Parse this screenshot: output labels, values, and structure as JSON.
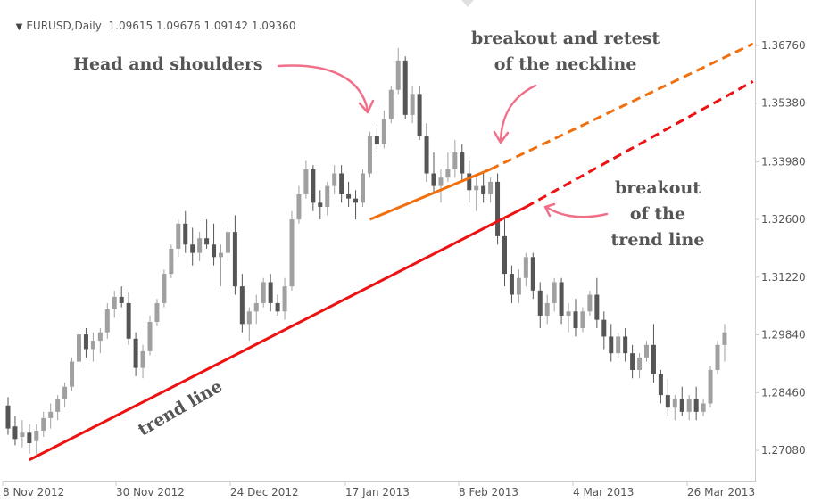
{
  "header": {
    "symbol": "EURUSD,Daily",
    "ohlc": "1.09615 1.09676 1.09142 1.09360",
    "triangle_icon": "down-triangle-icon"
  },
  "annotations": {
    "head_shoulders": "Head and shoulders",
    "breakout_retest": [
      "breakout and retest",
      "of the neckline"
    ],
    "breakout_trend": [
      "breakout",
      "of the",
      "trend line"
    ],
    "trend_line": "trend line"
  },
  "chart_data": {
    "type": "candlestick",
    "symbol": "EURUSD",
    "timeframe": "Daily",
    "y_ticks": [
      "1.36760",
      "1.35380",
      "1.33980",
      "1.32600",
      "1.31220",
      "1.29840",
      "1.28460",
      "1.27080"
    ],
    "x_ticks": [
      "8 Nov 2012",
      "30 Nov 2012",
      "24 Dec 2012",
      "17 Jan 2013",
      "8 Feb 2013",
      "4 Mar 2013",
      "26 Mar 2013"
    ],
    "ylim": [
      1.2658,
      1.3741
    ],
    "grid": false,
    "colors": {
      "bull": "#a0a0a0",
      "bear": "#555555",
      "trend_line": "#ee1111",
      "neckline": "#f07010",
      "arrow": "#f0708a",
      "text": "#555555",
      "axis": "#cccccc"
    },
    "candles": [
      [
        1.2815,
        1.2835,
        1.2745,
        1.276
      ],
      [
        1.2765,
        1.279,
        1.272,
        1.2735
      ],
      [
        1.274,
        1.278,
        1.2715,
        1.275
      ],
      [
        1.275,
        1.277,
        1.27,
        1.2725
      ],
      [
        1.273,
        1.277,
        1.269,
        1.2755
      ],
      [
        1.2755,
        1.28,
        1.274,
        1.2785
      ],
      [
        1.2785,
        1.282,
        1.276,
        1.28
      ],
      [
        1.28,
        1.284,
        1.278,
        1.283
      ],
      [
        1.283,
        1.287,
        1.281,
        1.286
      ],
      [
        1.286,
        1.293,
        1.285,
        1.292
      ],
      [
        1.292,
        1.299,
        1.291,
        1.2985
      ],
      [
        1.2985,
        1.3,
        1.293,
        1.295
      ],
      [
        1.295,
        1.299,
        1.292,
        1.297
      ],
      [
        1.297,
        1.3,
        1.294,
        1.299
      ],
      [
        1.299,
        1.306,
        1.2975,
        1.3045
      ],
      [
        1.3045,
        1.309,
        1.3025,
        1.3075
      ],
      [
        1.3075,
        1.31,
        1.305,
        1.306
      ],
      [
        1.306,
        1.3085,
        1.296,
        1.2975
      ],
      [
        1.2975,
        1.299,
        1.2885,
        1.2905
      ],
      [
        1.2905,
        1.296,
        1.288,
        1.2945
      ],
      [
        1.2945,
        1.303,
        1.2935,
        1.3015
      ],
      [
        1.3015,
        1.307,
        1.3005,
        1.306
      ],
      [
        1.306,
        1.314,
        1.305,
        1.313
      ],
      [
        1.313,
        1.32,
        1.312,
        1.319
      ],
      [
        1.319,
        1.326,
        1.317,
        1.325
      ],
      [
        1.325,
        1.328,
        1.318,
        1.32
      ],
      [
        1.32,
        1.324,
        1.315,
        1.318
      ],
      [
        1.318,
        1.323,
        1.316,
        1.3215
      ],
      [
        1.3215,
        1.326,
        1.319,
        1.32
      ],
      [
        1.32,
        1.325,
        1.315,
        1.317
      ],
      [
        1.317,
        1.32,
        1.31,
        1.318
      ],
      [
        1.318,
        1.324,
        1.316,
        1.323
      ],
      [
        1.323,
        1.327,
        1.308,
        1.31
      ],
      [
        1.31,
        1.313,
        1.299,
        1.301
      ],
      [
        1.301,
        1.305,
        1.297,
        1.304
      ],
      [
        1.304,
        1.308,
        1.301,
        1.306
      ],
      [
        1.306,
        1.312,
        1.305,
        1.311
      ],
      [
        1.311,
        1.313,
        1.304,
        1.306
      ],
      [
        1.306,
        1.308,
        1.303,
        1.304
      ],
      [
        1.304,
        1.312,
        1.302,
        1.31
      ],
      [
        1.31,
        1.328,
        1.309,
        1.326
      ],
      [
        1.326,
        1.334,
        1.325,
        1.332
      ],
      [
        1.332,
        1.34,
        1.331,
        1.338
      ],
      [
        1.338,
        1.339,
        1.328,
        1.33
      ],
      [
        1.33,
        1.333,
        1.326,
        1.329
      ],
      [
        1.329,
        1.335,
        1.327,
        1.334
      ],
      [
        1.334,
        1.339,
        1.332,
        1.337
      ],
      [
        1.337,
        1.339,
        1.33,
        1.332
      ],
      [
        1.332,
        1.335,
        1.329,
        1.331
      ],
      [
        1.331,
        1.333,
        1.326,
        1.33
      ],
      [
        1.33,
        1.338,
        1.329,
        1.337
      ],
      [
        1.337,
        1.347,
        1.336,
        1.346
      ],
      [
        1.346,
        1.348,
        1.342,
        1.344
      ],
      [
        1.344,
        1.352,
        1.343,
        1.35
      ],
      [
        1.35,
        1.358,
        1.349,
        1.357
      ],
      [
        1.357,
        1.367,
        1.356,
        1.364
      ],
      [
        1.364,
        1.365,
        1.35,
        1.351
      ],
      [
        1.351,
        1.358,
        1.349,
        1.356
      ],
      [
        1.356,
        1.358,
        1.345,
        1.346
      ],
      [
        1.346,
        1.349,
        1.335,
        1.337
      ],
      [
        1.337,
        1.342,
        1.332,
        1.334
      ],
      [
        1.334,
        1.338,
        1.33,
        1.336
      ],
      [
        1.336,
        1.342,
        1.335,
        1.338
      ],
      [
        1.338,
        1.345,
        1.336,
        1.342
      ],
      [
        1.342,
        1.344,
        1.335,
        1.337
      ],
      [
        1.337,
        1.34,
        1.33,
        1.333
      ],
      [
        1.333,
        1.336,
        1.328,
        1.334
      ],
      [
        1.334,
        1.337,
        1.33,
        1.332
      ],
      [
        1.332,
        1.336,
        1.33,
        1.335
      ],
      [
        1.335,
        1.337,
        1.32,
        1.322
      ],
      [
        1.322,
        1.326,
        1.31,
        1.313
      ],
      [
        1.313,
        1.315,
        1.306,
        1.308
      ],
      [
        1.308,
        1.314,
        1.306,
        1.312
      ],
      [
        1.312,
        1.318,
        1.31,
        1.317
      ],
      [
        1.317,
        1.318,
        1.307,
        1.309
      ],
      [
        1.309,
        1.311,
        1.3,
        1.303
      ],
      [
        1.303,
        1.308,
        1.301,
        1.306
      ],
      [
        1.306,
        1.312,
        1.304,
        1.311
      ],
      [
        1.311,
        1.312,
        1.301,
        1.303
      ],
      [
        1.303,
        1.306,
        1.299,
        1.304
      ],
      [
        1.304,
        1.307,
        1.298,
        1.3
      ],
      [
        1.3,
        1.305,
        1.299,
        1.304
      ],
      [
        1.304,
        1.309,
        1.303,
        1.308
      ],
      [
        1.308,
        1.312,
        1.3,
        1.302
      ],
      [
        1.302,
        1.304,
        1.295,
        1.298
      ],
      [
        1.298,
        1.301,
        1.292,
        1.294
      ],
      [
        1.294,
        1.299,
        1.293,
        1.298
      ],
      [
        1.298,
        1.3,
        1.292,
        1.294
      ],
      [
        1.294,
        1.296,
        1.288,
        1.29
      ],
      [
        1.29,
        1.294,
        1.288,
        1.293
      ],
      [
        1.293,
        1.297,
        1.292,
        1.296
      ],
      [
        1.296,
        1.301,
        1.287,
        1.289
      ],
      [
        1.289,
        1.29,
        1.282,
        1.284
      ],
      [
        1.284,
        1.288,
        1.279,
        1.281
      ],
      [
        1.281,
        1.284,
        1.278,
        1.283
      ],
      [
        1.283,
        1.286,
        1.279,
        1.28
      ],
      [
        1.28,
        1.284,
        1.278,
        1.283
      ],
      [
        1.283,
        1.286,
        1.278,
        1.28
      ],
      [
        1.28,
        1.283,
        1.279,
        1.282
      ],
      [
        1.282,
        1.291,
        1.281,
        1.29
      ],
      [
        1.29,
        1.297,
        1.289,
        1.296
      ],
      [
        1.296,
        1.301,
        1.292,
        1.299
      ]
    ],
    "trend_line": {
      "from": [
        3,
        1.2685
      ],
      "to": [
        73,
        1.329
      ],
      "extend_to": [
        105,
        1.359
      ]
    },
    "neckline": {
      "from": [
        51,
        1.326
      ],
      "to": [
        68,
        1.338
      ],
      "extend_to": [
        105,
        1.368
      ]
    }
  }
}
